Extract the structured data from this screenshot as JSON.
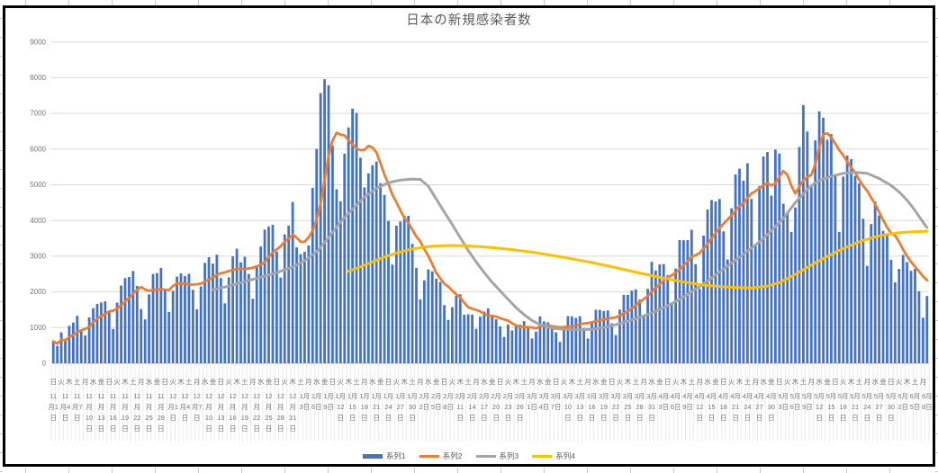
{
  "window": {
    "background": "#FFFFFF",
    "frame_color": "#000000"
  },
  "chart_data": {
    "type": "combo",
    "title": "日本の新規感染者数",
    "grid": true,
    "legend_position": "bottom",
    "colors": {
      "gridline": "#D9D9D9",
      "axis_line": "#BFBFBF",
      "tick_line": "#E5E5E5",
      "label_text": "#767676",
      "title_text": "#595959"
    },
    "y_axis": {
      "min": 0,
      "max": 9000,
      "step": 1000,
      "tick_labels": [
        "0",
        "1000",
        "2000",
        "3000",
        "4000",
        "5000",
        "6000",
        "7000",
        "8000",
        "9000"
      ]
    },
    "x_axis": {
      "n_days": 220,
      "date_label_interval_days": 3,
      "date_labels": [
        "11月1日",
        "11月4日",
        "11月7日",
        "11月10日",
        "11月13日",
        "11月16日",
        "11月19日",
        "11月22日",
        "11月25日",
        "11月28日",
        "12月1日",
        "12月4日",
        "12月7日",
        "12月10日",
        "12月13日",
        "12月16日",
        "12月19日",
        "12月22日",
        "12月25日",
        "12月28日",
        "12月31日",
        "1月3日",
        "1月6日",
        "1月9日",
        "1月12日",
        "1月15日",
        "1月18日",
        "1月21日",
        "1月24日",
        "1月27日",
        "1月30日",
        "2月2日",
        "2月5日",
        "2月8日",
        "2月11日",
        "2月14日",
        "2月17日",
        "2月20日",
        "2月23日",
        "2月26日",
        "3月1日",
        "3月4日",
        "3月7日",
        "3月10日",
        "3月13日",
        "3月16日",
        "3月19日",
        "3月22日",
        "3月25日",
        "3月28日",
        "3月31日",
        "4月3日",
        "4月6日",
        "4月9日",
        "4月12日",
        "4月15日",
        "4月18日",
        "4月21日",
        "4月24日",
        "4月27日",
        "4月30日",
        "5月3日",
        "5月6日",
        "5月9日",
        "5月12日",
        "5月15日",
        "5月18日",
        "5月21日",
        "5月24日",
        "5月27日",
        "5月30日",
        "6月2日",
        "6月5日",
        "6月8日"
      ],
      "weekday_label_interval_days": 2,
      "weekday_labels": "日火木土月水金日火木土月水金日火木土月水金日火木土月水金日火木土月水金日火木土月水金日火木土月水金日火木土月水金日火木土月水金日火木土月水金日火木土月水金日火木土月水金日火木土月水金日火木土月水金日火木土月水金日火木土月"
    },
    "series": [
      {
        "name": "系列1",
        "type": "bar",
        "color": "#4472C4",
        "values": [
          614,
          488,
          867,
          620,
          1050,
          1141,
          1331,
          951,
          780,
          1284,
          1543,
          1660,
          1704,
          1737,
          1441,
          962,
          1699,
          2179,
          2386,
          2418,
          2586,
          2168,
          1520,
          1229,
          1930,
          2501,
          2527,
          2674,
          2066,
          1438,
          2030,
          2430,
          2518,
          2442,
          2508,
          2058,
          1515,
          2152,
          2811,
          2973,
          2790,
          3041,
          2387,
          1680,
          2410,
          2994,
          3211,
          2829,
          2982,
          2501,
          1806,
          2688,
          3271,
          3742,
          3832,
          3881,
          3127,
          2403,
          3610,
          3852,
          4520,
          3246,
          3057,
          3126,
          3302,
          4914,
          6004,
          7570,
          7957,
          7790,
          6096,
          4875,
          4538,
          5870,
          6607,
          7133,
          7014,
          5759,
          4925,
          5320,
          5549,
          5653,
          5045,
          4717,
          3988,
          2764,
          3853,
          3971,
          4133,
          4131,
          3344,
          2673,
          1791,
          2324,
          2631,
          2576,
          2372,
          2277,
          1630,
          1216,
          1570,
          1887,
          1933,
          1362,
          1371,
          1364,
          965,
          1307,
          1448,
          1538,
          1301,
          1234,
          1032,
          739,
          1085,
          921,
          1076,
          1083,
          1180,
          999,
          697,
          888,
          1316,
          1174,
          1148,
          1049,
          866,
          599,
          972,
          1321,
          1316,
          1271,
          1320,
          989,
          695,
          1133,
          1501,
          1499,
          1463,
          1480,
          1121,
          791,
          1504,
          1918,
          1917,
          2036,
          2071,
          1785,
          1351,
          2087,
          2843,
          2597,
          2770,
          2779,
          2472,
          1672,
          2653,
          3451,
          3448,
          3450,
          3740,
          2777,
          2087,
          3577,
          4309,
          4571,
          4532,
          4603,
          3697,
          2908,
          4342,
          5290,
          5451,
          5112,
          5605,
          4605,
          3318,
          4965,
          5793,
          5918,
          4698,
          5986,
          5879,
          4470,
          4199,
          3680,
          4365,
          6058,
          7234,
          6493,
          4936,
          6242,
          7057,
          6881,
          6263,
          6421,
          5261,
          3680,
          5230,
          5814,
          5720,
          5250,
          5040,
          4048,
          2729,
          3901,
          4536,
          4141,
          3708,
          3604,
          2900,
          2268,
          2644,
          3035,
          2836,
          2592,
          2645,
          2021,
          1278,
          1886
        ]
      },
      {
        "name": "系列2",
        "type": "line",
        "color": "#ED7D31",
        "derived_from": "series-0",
        "moving_average_window_days": 7
      },
      {
        "name": "系列3",
        "type": "line",
        "color": "#A5A5A5",
        "points": [
          [
            40,
            2060
          ],
          [
            44,
            2160
          ],
          [
            48,
            2290
          ],
          [
            52,
            2410
          ],
          [
            56,
            2540
          ],
          [
            60,
            2700
          ],
          [
            63,
            2870
          ],
          [
            66,
            3120
          ],
          [
            69,
            3520
          ],
          [
            72,
            3960
          ],
          [
            75,
            4320
          ],
          [
            78,
            4660
          ],
          [
            81,
            4900
          ],
          [
            84,
            5060
          ],
          [
            87,
            5130
          ],
          [
            90,
            5160
          ],
          [
            92,
            5150
          ],
          [
            94,
            4960
          ],
          [
            96,
            4600
          ],
          [
            98,
            4240
          ],
          [
            100,
            3890
          ],
          [
            102,
            3520
          ],
          [
            104,
            3160
          ],
          [
            106,
            2840
          ],
          [
            108,
            2540
          ],
          [
            110,
            2270
          ],
          [
            112,
            2030
          ],
          [
            114,
            1790
          ],
          [
            116,
            1560
          ],
          [
            118,
            1360
          ],
          [
            120,
            1200
          ],
          [
            122,
            1080
          ],
          [
            124,
            1010
          ],
          [
            126,
            970
          ],
          [
            129,
            945
          ],
          [
            132,
            940
          ],
          [
            135,
            950
          ],
          [
            138,
            1000
          ],
          [
            141,
            1080
          ],
          [
            144,
            1180
          ],
          [
            147,
            1290
          ],
          [
            150,
            1410
          ],
          [
            153,
            1560
          ],
          [
            156,
            1730
          ],
          [
            159,
            1930
          ],
          [
            162,
            2150
          ],
          [
            165,
            2390
          ],
          [
            168,
            2640
          ],
          [
            171,
            2890
          ],
          [
            174,
            3140
          ],
          [
            177,
            3400
          ],
          [
            180,
            3710
          ],
          [
            183,
            4060
          ],
          [
            186,
            4500
          ],
          [
            189,
            4870
          ],
          [
            191,
            5060
          ],
          [
            193,
            5160
          ],
          [
            195,
            5240
          ],
          [
            198,
            5320
          ],
          [
            201,
            5350
          ],
          [
            204,
            5320
          ],
          [
            207,
            5180
          ],
          [
            210,
            4980
          ],
          [
            212,
            4800
          ],
          [
            214,
            4570
          ],
          [
            216,
            4280
          ],
          [
            218,
            3950
          ],
          [
            219,
            3800
          ]
        ]
      },
      {
        "name": "系列4",
        "type": "line",
        "color": "#FFC000",
        "points": [
          [
            74,
            2580
          ],
          [
            77,
            2700
          ],
          [
            80,
            2840
          ],
          [
            83,
            2980
          ],
          [
            86,
            3090
          ],
          [
            89,
            3180
          ],
          [
            92,
            3240
          ],
          [
            95,
            3280
          ],
          [
            99,
            3300
          ],
          [
            103,
            3295
          ],
          [
            107,
            3270
          ],
          [
            111,
            3230
          ],
          [
            115,
            3185
          ],
          [
            119,
            3130
          ],
          [
            123,
            3060
          ],
          [
            127,
            2985
          ],
          [
            131,
            2905
          ],
          [
            135,
            2820
          ],
          [
            139,
            2730
          ],
          [
            143,
            2630
          ],
          [
            147,
            2530
          ],
          [
            151,
            2430
          ],
          [
            155,
            2340
          ],
          [
            159,
            2260
          ],
          [
            163,
            2195
          ],
          [
            167,
            2150
          ],
          [
            171,
            2120
          ],
          [
            175,
            2110
          ],
          [
            179,
            2160
          ],
          [
            182,
            2260
          ],
          [
            185,
            2430
          ],
          [
            188,
            2620
          ],
          [
            191,
            2810
          ],
          [
            194,
            2990
          ],
          [
            197,
            3160
          ],
          [
            200,
            3310
          ],
          [
            203,
            3440
          ],
          [
            206,
            3540
          ],
          [
            209,
            3610
          ],
          [
            212,
            3655
          ],
          [
            215,
            3680
          ],
          [
            219,
            3700
          ]
        ]
      }
    ]
  }
}
